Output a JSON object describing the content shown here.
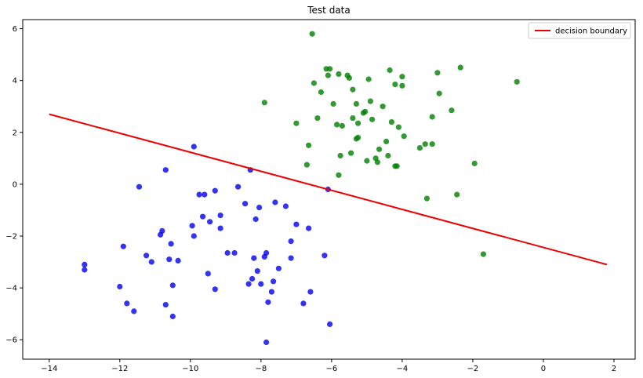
{
  "chart_data": {
    "type": "scatter",
    "title": "Test data",
    "xlabel": "",
    "ylabel": "",
    "xlim": [
      -14.75,
      2.6
    ],
    "ylim": [
      -6.75,
      6.35
    ],
    "xticks": [
      -14,
      -12,
      -10,
      -8,
      -6,
      -4,
      -2,
      0,
      2
    ],
    "yticks": [
      -6,
      -4,
      -2,
      0,
      2,
      4,
      6
    ],
    "grid": false,
    "legend_position": "top-right",
    "series": [
      {
        "color": "#0000ee",
        "points": [
          [
            -13.0,
            -3.1
          ],
          [
            -13.0,
            -3.3
          ],
          [
            -12.0,
            -3.95
          ],
          [
            -11.9,
            -2.4
          ],
          [
            -11.8,
            -4.6
          ],
          [
            -11.6,
            -4.9
          ],
          [
            -11.45,
            -0.1
          ],
          [
            -11.25,
            -2.75
          ],
          [
            -11.1,
            -3.0
          ],
          [
            -10.85,
            -1.95
          ],
          [
            -10.8,
            -1.8
          ],
          [
            -10.7,
            -4.65
          ],
          [
            -10.7,
            0.55
          ],
          [
            -10.6,
            -2.9
          ],
          [
            -10.55,
            -2.3
          ],
          [
            -10.5,
            -3.9
          ],
          [
            -10.5,
            -5.1
          ],
          [
            -10.35,
            -2.95
          ],
          [
            -9.95,
            -1.6
          ],
          [
            -9.9,
            1.45
          ],
          [
            -9.9,
            -2.0
          ],
          [
            -9.75,
            -0.4
          ],
          [
            -9.65,
            -1.25
          ],
          [
            -9.6,
            -0.4
          ],
          [
            -9.5,
            -3.45
          ],
          [
            -9.45,
            -1.45
          ],
          [
            -9.3,
            -0.25
          ],
          [
            -9.3,
            -4.05
          ],
          [
            -9.15,
            -1.7
          ],
          [
            -9.15,
            -1.2
          ],
          [
            -8.95,
            -2.65
          ],
          [
            -8.75,
            -2.65
          ],
          [
            -8.65,
            -0.1
          ],
          [
            -8.45,
            -0.75
          ],
          [
            -8.35,
            -3.85
          ],
          [
            -8.3,
            0.55
          ],
          [
            -8.25,
            -3.65
          ],
          [
            -8.2,
            -2.85
          ],
          [
            -8.15,
            -1.35
          ],
          [
            -8.1,
            -3.35
          ],
          [
            -8.05,
            -0.9
          ],
          [
            -8.0,
            -3.85
          ],
          [
            -7.9,
            -2.8
          ],
          [
            -7.85,
            -2.65
          ],
          [
            -7.85,
            -6.1
          ],
          [
            -7.8,
            -4.55
          ],
          [
            -7.7,
            -4.15
          ],
          [
            -7.65,
            -3.75
          ],
          [
            -7.6,
            -0.7
          ],
          [
            -7.5,
            -3.25
          ],
          [
            -7.3,
            -0.85
          ],
          [
            -7.15,
            -2.2
          ],
          [
            -7.15,
            -2.85
          ],
          [
            -7.0,
            -1.55
          ],
          [
            -6.8,
            -4.6
          ],
          [
            -6.65,
            -1.7
          ],
          [
            -6.6,
            -4.15
          ],
          [
            -6.2,
            -2.75
          ],
          [
            -6.1,
            -0.2
          ],
          [
            -6.05,
            -5.4
          ]
        ]
      },
      {
        "color": "#008000",
        "points": [
          [
            -7.9,
            3.15
          ],
          [
            -7.0,
            2.35
          ],
          [
            -6.7,
            0.75
          ],
          [
            -6.65,
            1.5
          ],
          [
            -6.55,
            5.8
          ],
          [
            -6.5,
            3.9
          ],
          [
            -6.4,
            2.55
          ],
          [
            -6.3,
            3.55
          ],
          [
            -6.15,
            4.45
          ],
          [
            -6.1,
            4.2
          ],
          [
            -6.05,
            4.45
          ],
          [
            -5.95,
            3.1
          ],
          [
            -5.85,
            2.3
          ],
          [
            -5.8,
            4.25
          ],
          [
            -5.8,
            0.35
          ],
          [
            -5.75,
            1.1
          ],
          [
            -5.7,
            2.25
          ],
          [
            -5.55,
            4.2
          ],
          [
            -5.5,
            4.1
          ],
          [
            -5.45,
            1.2
          ],
          [
            -5.4,
            2.55
          ],
          [
            -5.4,
            3.65
          ],
          [
            -5.3,
            1.75
          ],
          [
            -5.3,
            3.1
          ],
          [
            -5.25,
            1.8
          ],
          [
            -5.25,
            2.35
          ],
          [
            -5.1,
            2.75
          ],
          [
            -5.05,
            2.8
          ],
          [
            -5.0,
            0.9
          ],
          [
            -4.95,
            4.05
          ],
          [
            -4.9,
            3.2
          ],
          [
            -4.85,
            2.5
          ],
          [
            -4.75,
            1.0
          ],
          [
            -4.7,
            0.85
          ],
          [
            -4.65,
            1.35
          ],
          [
            -4.55,
            3.0
          ],
          [
            -4.45,
            1.65
          ],
          [
            -4.4,
            1.1
          ],
          [
            -4.35,
            4.4
          ],
          [
            -4.3,
            2.4
          ],
          [
            -4.2,
            0.7
          ],
          [
            -4.2,
            3.85
          ],
          [
            -4.15,
            0.7
          ],
          [
            -4.1,
            2.2
          ],
          [
            -4.0,
            4.15
          ],
          [
            -4.0,
            3.8
          ],
          [
            -3.95,
            1.85
          ],
          [
            -3.5,
            1.4
          ],
          [
            -3.35,
            1.55
          ],
          [
            -3.3,
            -0.55
          ],
          [
            -3.15,
            1.55
          ],
          [
            -3.15,
            2.6
          ],
          [
            -3.0,
            4.3
          ],
          [
            -2.95,
            3.5
          ],
          [
            -2.6,
            2.85
          ],
          [
            -2.45,
            -0.4
          ],
          [
            -2.35,
            4.5
          ],
          [
            -1.95,
            0.8
          ],
          [
            -1.7,
            -2.7
          ],
          [
            -0.75,
            3.95
          ]
        ]
      }
    ],
    "line": {
      "name": "decision boundary",
      "color": "#ee0000",
      "x": [
        -14.0,
        1.8
      ],
      "y": [
        2.7,
        -3.1
      ]
    }
  }
}
